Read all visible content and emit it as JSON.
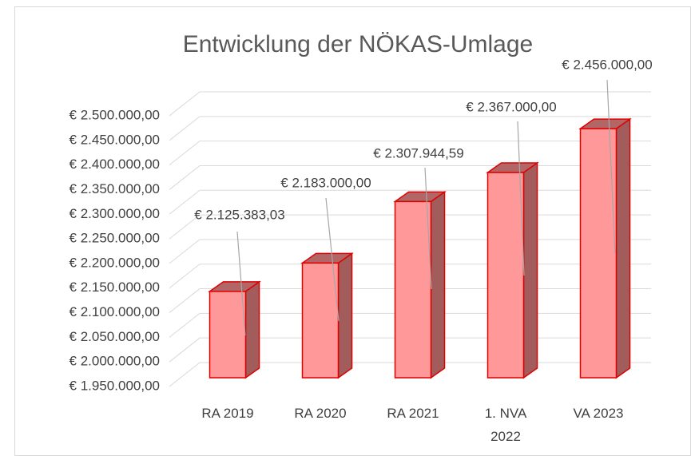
{
  "chart_data": {
    "type": "bar3d",
    "title": "Entwicklung der NÖKAS-Umlage",
    "categories": [
      "RA 2019",
      "RA 2020",
      "RA 2021",
      "1. NVA 2022",
      "VA 2023"
    ],
    "values": [
      2125383.03,
      2183000,
      2307944.59,
      2367000,
      2456000
    ],
    "value_labels": [
      "€ 2.125.383,03",
      "€ 2.183.000,00",
      "€ 2.307.944,59",
      "€ 2.367.000,00",
      "€ 2.456.000,00"
    ],
    "color": "#ff9999",
    "ylim": [
      1950000,
      2500000
    ],
    "yticks": [
      {
        "value": 1950000,
        "label": "€ 1.950.000,00"
      },
      {
        "value": 2000000,
        "label": "€ 2.000.000,00"
      },
      {
        "value": 2050000,
        "label": "€ 2.050.000,00"
      },
      {
        "value": 2100000,
        "label": "€ 2.100.000,00"
      },
      {
        "value": 2150000,
        "label": "€ 2.150.000,00"
      },
      {
        "value": 2200000,
        "label": "€ 2.200.000,00"
      },
      {
        "value": 2250000,
        "label": "€ 2.250.000,00"
      },
      {
        "value": 2300000,
        "label": "€ 2.300.000,00"
      },
      {
        "value": 2350000,
        "label": "€ 2.350.000,00"
      },
      {
        "value": 2400000,
        "label": "€ 2.400.000,00"
      },
      {
        "value": 2450000,
        "label": "€ 2.450.000,00"
      },
      {
        "value": 2500000,
        "label": "€ 2.500.000,00"
      }
    ],
    "grid": true
  }
}
